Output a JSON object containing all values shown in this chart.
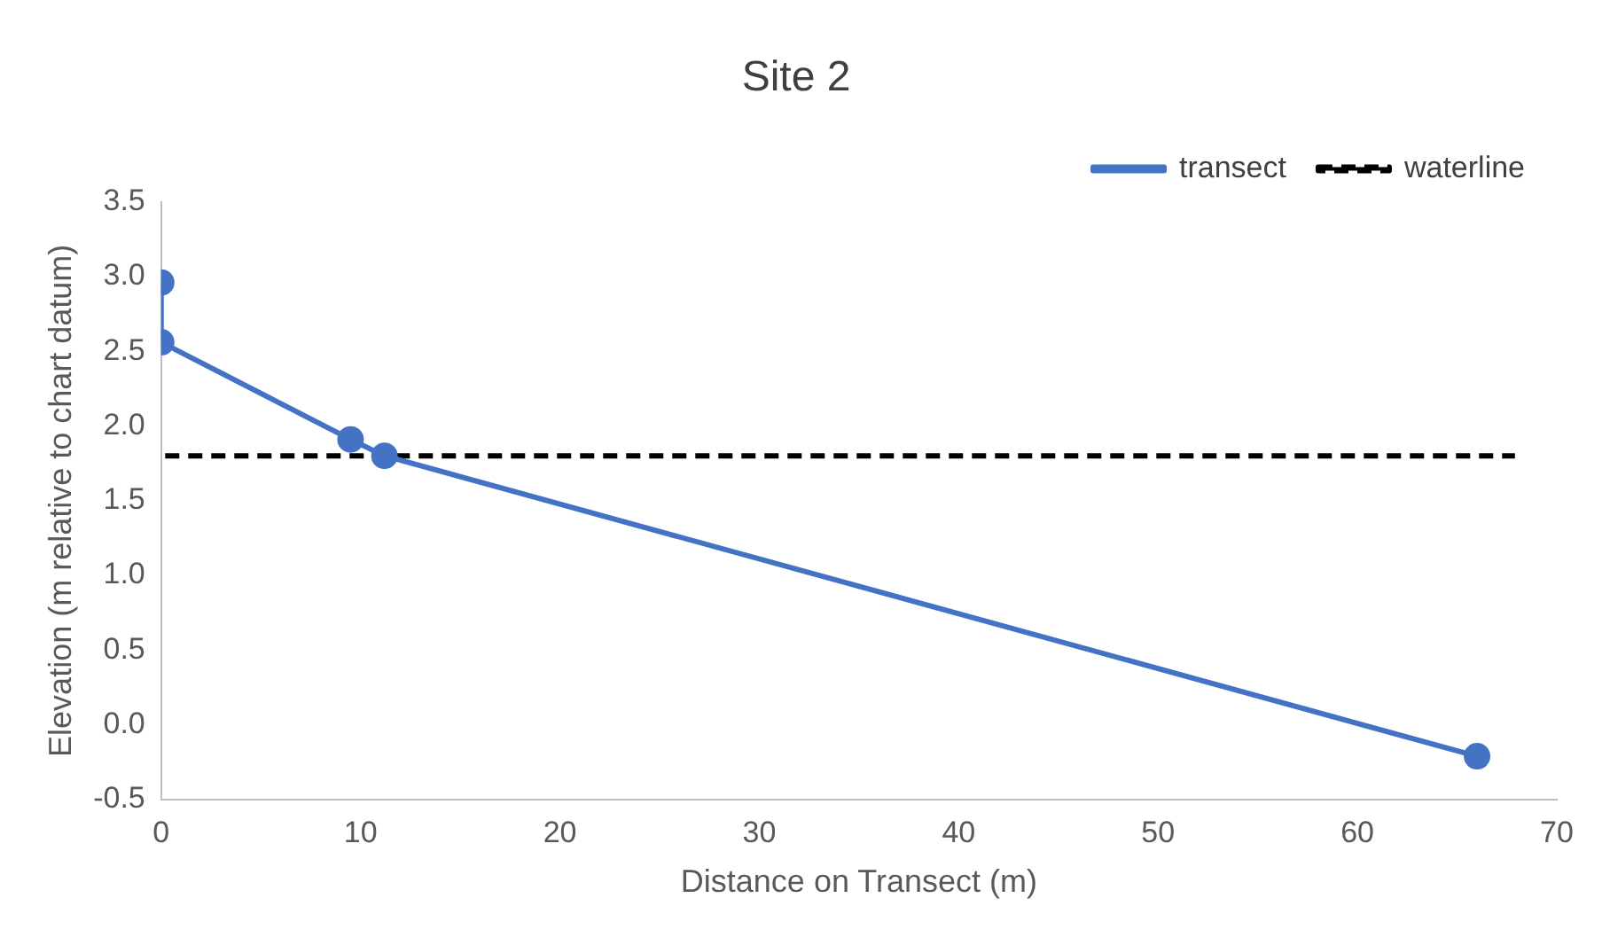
{
  "chart_data": {
    "type": "line",
    "title": "Site 2",
    "xlabel": "Distance on Transect (m)",
    "ylabel": "Elevation (m relative to chart datum)",
    "xlim": [
      0,
      70
    ],
    "xticks": [
      0,
      10,
      20,
      30,
      40,
      50,
      60,
      70
    ],
    "ylim": [
      -0.5,
      3.5
    ],
    "yticks": [
      {
        "value": -0.5,
        "label": "-0.5"
      },
      {
        "value": 0,
        "label": "0.0"
      },
      {
        "value": 0.5,
        "label": "0.5"
      },
      {
        "value": 1,
        "label": "1.0"
      },
      {
        "value": 1.5,
        "label": "1.5"
      },
      {
        "value": 2,
        "label": "2.0"
      },
      {
        "value": 2.5,
        "label": "2.5"
      },
      {
        "value": 3,
        "label": "3.0"
      },
      {
        "value": 3.5,
        "label": "3.5"
      }
    ],
    "grid": false,
    "legend": "top right",
    "series": [
      {
        "name": "transect",
        "color": "#4472c4",
        "x": [
          0,
          0,
          9.5,
          11.2,
          66
        ],
        "values": [
          2.96,
          2.56,
          1.91,
          1.8,
          -0.21
        ],
        "marker": "circle",
        "line_style": "solid"
      },
      {
        "name": "waterline",
        "color": "#000000",
        "x": [
          0.2,
          67.9
        ],
        "values": [
          1.8,
          1.8
        ],
        "marker": "none",
        "line_style": "dashed"
      }
    ]
  }
}
